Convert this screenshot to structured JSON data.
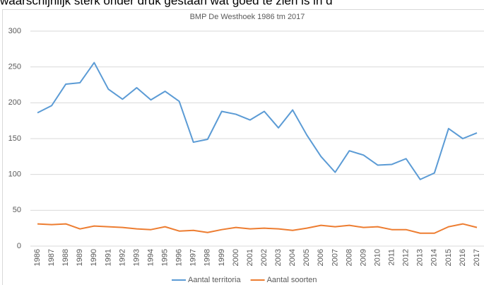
{
  "page_text": "waarschijnlijk sterk onder druk gestaan wat goed te zien is in d",
  "chart_data": {
    "type": "line",
    "title": "BMP De Westhoek 1986 tm 2017",
    "categories": [
      "1986",
      "1987",
      "1988",
      "1989",
      "1990",
      "1991",
      "1992",
      "1993",
      "1994",
      "1995",
      "1996",
      "1997",
      "1998",
      "1999",
      "2000",
      "2001",
      "2002",
      "2003",
      "2004",
      "2005",
      "2006",
      "2007",
      "2008",
      "2009",
      "2010",
      "2011",
      "2012",
      "2013",
      "2014",
      "2015",
      "2016",
      "2017"
    ],
    "series": [
      {
        "name": "Aantal territoria",
        "color": "#5b9bd5",
        "values": [
          186,
          196,
          226,
          228,
          256,
          219,
          205,
          221,
          204,
          216,
          202,
          145,
          149,
          188,
          184,
          176,
          188,
          165,
          190,
          155,
          125,
          103,
          133,
          127,
          113,
          114,
          122,
          93,
          102,
          164,
          150,
          158
        ]
      },
      {
        "name": "Aantal soorten",
        "color": "#ed7d31",
        "values": [
          31,
          30,
          31,
          24,
          28,
          27,
          26,
          24,
          23,
          27,
          21,
          22,
          19,
          23,
          26,
          24,
          25,
          24,
          22,
          25,
          29,
          27,
          29,
          26,
          27,
          23,
          23,
          18,
          18,
          27,
          31,
          26
        ]
      }
    ],
    "ylim": [
      0,
      300
    ],
    "yticks": [
      0,
      50,
      100,
      150,
      200,
      250,
      300
    ],
    "grid": true,
    "legend": "bottom"
  }
}
